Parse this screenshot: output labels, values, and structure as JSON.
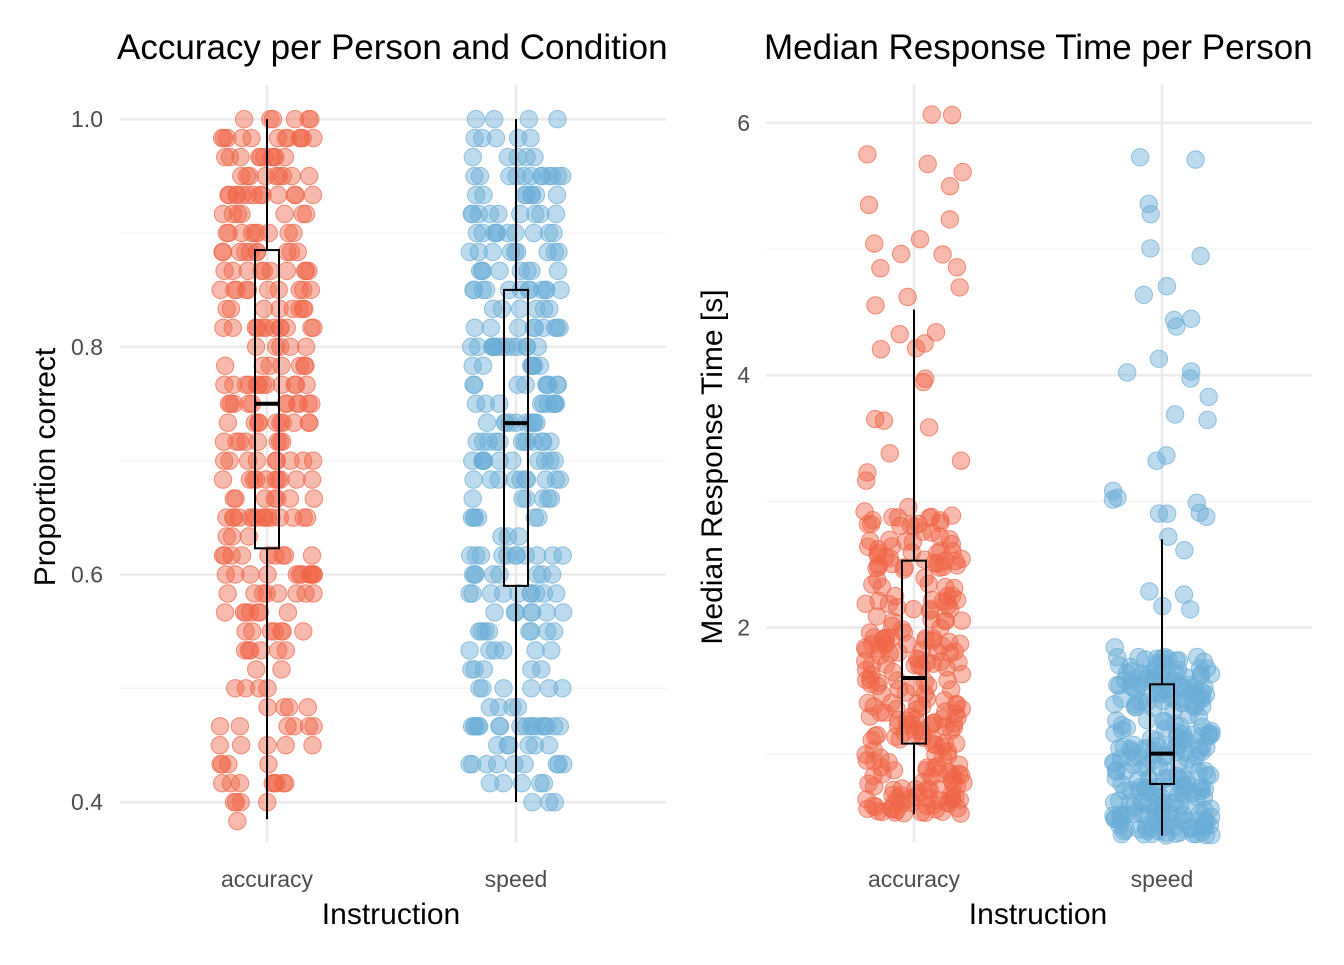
{
  "colors": {
    "accuracy": "#EF6548",
    "speed": "#6BAED6",
    "box": "#000000"
  },
  "chart_data": [
    {
      "type": "scatter",
      "subtype": "jitter-with-boxplot",
      "title": "Accuracy per Person and Condition",
      "xlabel": "Instruction",
      "ylabel": "Proportion correct",
      "categories": [
        "accuracy",
        "speed"
      ],
      "ylim": [
        0.365,
        1.03
      ],
      "y_ticks": [
        0.4,
        0.6,
        0.8,
        1.0
      ],
      "y_tick_labels": [
        "0.4",
        "0.6",
        "0.8",
        "1.0"
      ],
      "grid": true,
      "boxplots": [
        {
          "category": "accuracy",
          "min": 0.385,
          "q1": 0.623,
          "median": 0.75,
          "q3": 0.885,
          "max": 1.0
        },
        {
          "category": "speed",
          "min": 0.4,
          "q1": 0.59,
          "median": 0.733,
          "q3": 0.85,
          "max": 1.0
        }
      ],
      "points": {
        "accuracy": {
          "n": 300,
          "seed": 11,
          "dist": "uniform",
          "min": 0.385,
          "max": 1.0,
          "jitter": 0.38
        },
        "speed": {
          "n": 300,
          "seed": 23,
          "dist": "uniform",
          "min": 0.4,
          "max": 1.0,
          "jitter": 0.38
        }
      }
    },
    {
      "type": "scatter",
      "subtype": "jitter-with-boxplot",
      "title": "Median Response Time per Person",
      "xlabel": "Instruction",
      "ylabel": "Median Response Time [s]",
      "categories": [
        "accuracy",
        "speed"
      ],
      "ylim": [
        0.3,
        6.3
      ],
      "y_ticks": [
        2,
        4,
        6
      ],
      "y_tick_labels": [
        "2",
        "4",
        "6"
      ],
      "grid": true,
      "boxplots": [
        {
          "category": "accuracy",
          "min": 0.52,
          "q1": 1.08,
          "median": 1.6,
          "q3": 2.53,
          "max": 4.52
        },
        {
          "category": "speed",
          "min": 0.35,
          "q1": 0.76,
          "median": 1.0,
          "q3": 1.55,
          "max": 2.7
        }
      ],
      "points": {
        "accuracy": {
          "n": 300,
          "seed": 37,
          "dist": "skewed",
          "min": 0.52,
          "max": 6.1,
          "median": 1.6,
          "jitter": 0.4
        },
        "speed": {
          "n": 300,
          "seed": 51,
          "dist": "skewed",
          "min": 0.35,
          "max": 5.75,
          "median": 1.0,
          "jitter": 0.4
        }
      }
    }
  ]
}
